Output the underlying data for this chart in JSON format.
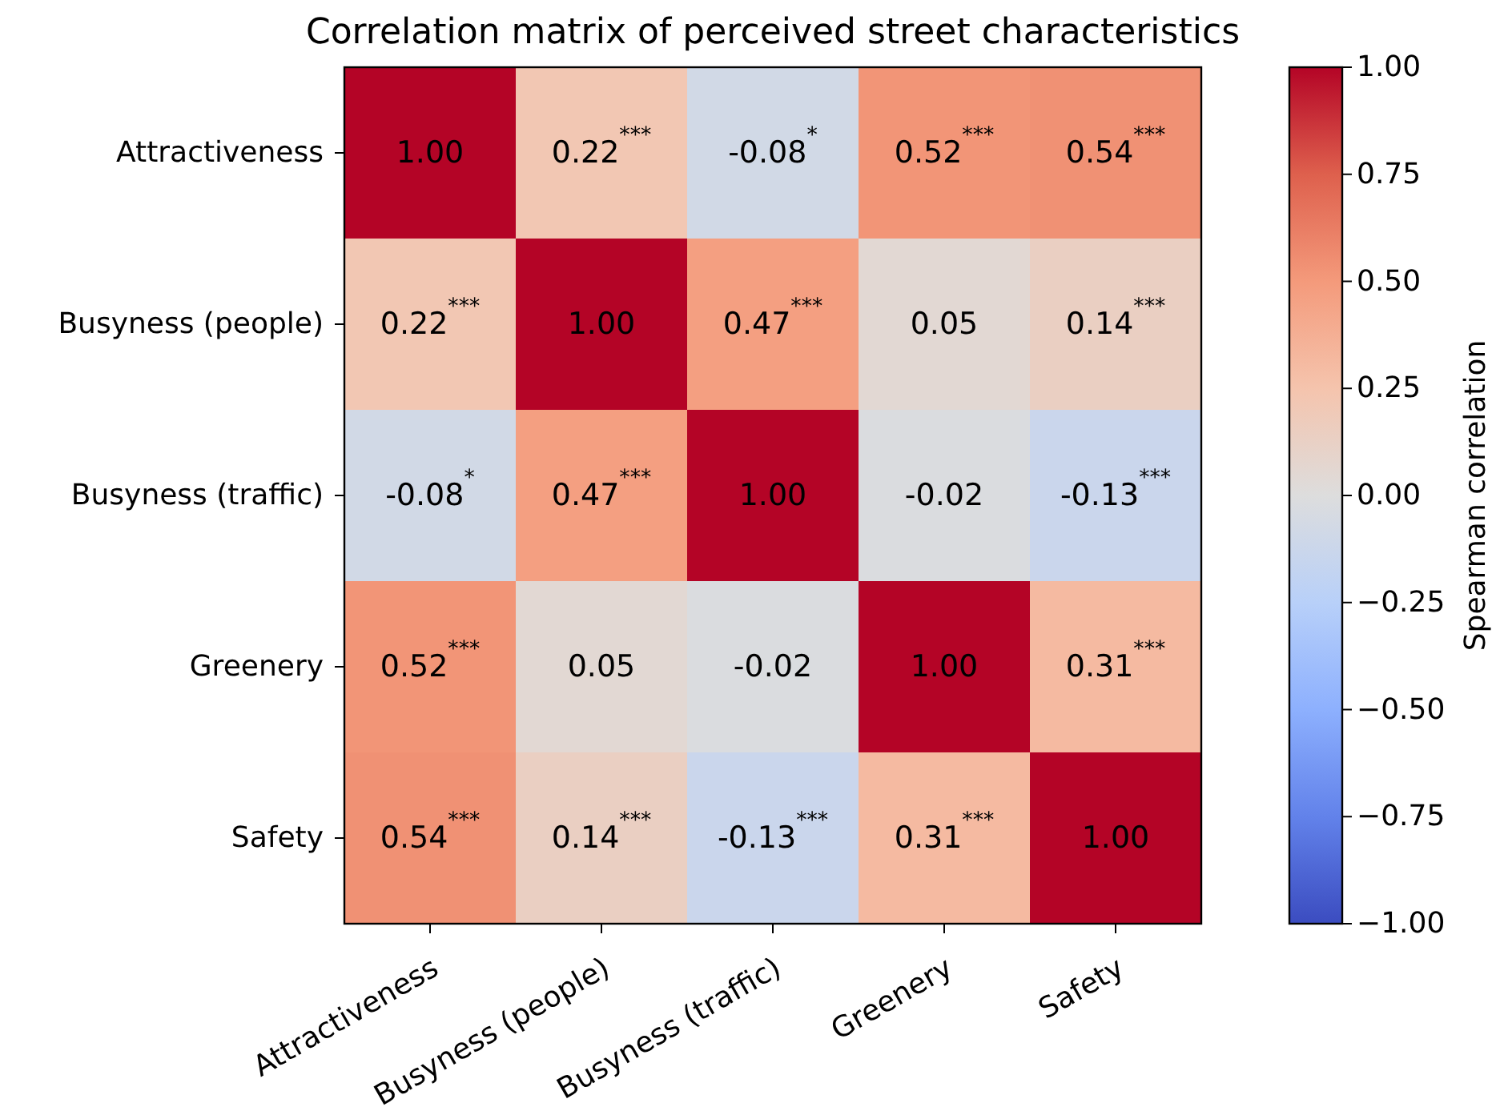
{
  "chart_data": {
    "type": "heatmap",
    "title": "Correlation matrix of perceived street characteristics",
    "categories": [
      "Attractiveness",
      "Busyness (people)",
      "Busyness (traffic)",
      "Greenery",
      "Safety"
    ],
    "y_categories": [
      "Attractiveness",
      "Busyness (people)",
      "Busyness (traffic)",
      "Greenery",
      "Safety"
    ],
    "cells": [
      [
        1.0,
        0.22,
        -0.08,
        0.52,
        0.54
      ],
      [
        0.22,
        1.0,
        0.47,
        0.05,
        0.14
      ],
      [
        -0.08,
        0.47,
        1.0,
        -0.02,
        -0.13
      ],
      [
        0.52,
        0.05,
        -0.02,
        1.0,
        0.31
      ],
      [
        0.54,
        0.14,
        -0.13,
        0.31,
        1.0
      ]
    ],
    "cell_labels": [
      [
        "1.00",
        "0.22$^{***}$",
        "-0.08$^{*}$",
        "0.52$^{***}$",
        "0.54$^{***}$"
      ],
      [
        "0.22$^{***}$",
        "1.00",
        "0.47$^{***}$",
        "0.05",
        "0.14$^{***}$"
      ],
      [
        "-0.08$^{*}$",
        "0.47$^{***}$",
        "1.00",
        "-0.02",
        "-0.13$^{***}$"
      ],
      [
        "0.52$^{***}$",
        "0.05",
        "-0.02",
        "1.00",
        "0.31$^{***}$"
      ],
      [
        "0.54$^{***}$",
        "0.14$^{***}$",
        "-0.13$^{***}$",
        "0.31$^{***}$",
        "1.00"
      ]
    ],
    "clabel": "Spearman correlation",
    "clim": [
      -1,
      1
    ],
    "cticks": [
      {
        "value": -1,
        "label": "−1.00"
      },
      {
        "value": -0.75,
        "label": "−0.75"
      },
      {
        "value": -0.5,
        "label": "−0.50"
      },
      {
        "value": -0.25,
        "label": "−0.25"
      },
      {
        "value": 0,
        "label": "0.00"
      },
      {
        "value": 0.25,
        "label": "0.25"
      },
      {
        "value": 0.5,
        "label": "0.50"
      },
      {
        "value": 0.75,
        "label": "0.75"
      },
      {
        "value": 1,
        "label": "1.00"
      }
    ]
  }
}
